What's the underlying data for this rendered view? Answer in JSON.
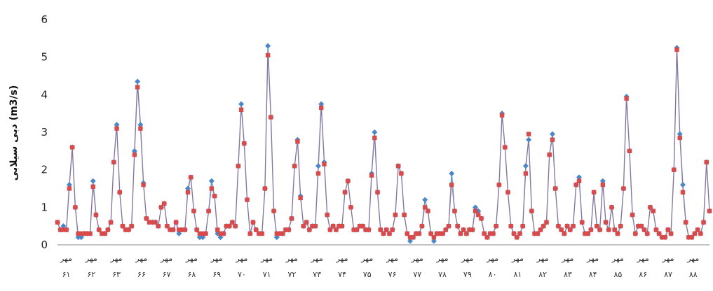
{
  "chart_data": {
    "type": "line",
    "ylabel": "دبی سیلابی (m3/s)",
    "ylim": [
      0,
      6
    ],
    "yticks": [
      0,
      1,
      2,
      3,
      4,
      5,
      6
    ],
    "grid": false,
    "xtick_labels": [
      {
        "top": "مهر",
        "bottom": "۶۱"
      },
      {
        "top": "مهر",
        "bottom": "۶۲"
      },
      {
        "top": "مهر",
        "bottom": "۶۳"
      },
      {
        "top": "مهر",
        "bottom": "۶۶"
      },
      {
        "top": "مهر",
        "bottom": "۶۷"
      },
      {
        "top": "مهر",
        "bottom": "۶۸"
      },
      {
        "top": "مهر",
        "bottom": "۶۹"
      },
      {
        "top": "مهر",
        "bottom": "۷۰"
      },
      {
        "top": "مهر",
        "bottom": "۷۱"
      },
      {
        "top": "مهر",
        "bottom": "۷۲"
      },
      {
        "top": "مهر",
        "bottom": "۷۳"
      },
      {
        "top": "مهر",
        "bottom": "۷۴"
      },
      {
        "top": "مهر",
        "bottom": "۷۵"
      },
      {
        "top": "مهر",
        "bottom": "۷۶"
      },
      {
        "top": "مهر",
        "bottom": "۷۷"
      },
      {
        "top": "مهر",
        "bottom": "۷۸"
      },
      {
        "top": "مهر",
        "bottom": "۷۹"
      },
      {
        "top": "مهر",
        "bottom": "۸۰"
      },
      {
        "top": "مهر",
        "bottom": "۸۱"
      },
      {
        "top": "مهر",
        "bottom": "۸۲"
      },
      {
        "top": "مهر",
        "bottom": "۸۳"
      },
      {
        "top": "مهر",
        "bottom": "۸۴"
      },
      {
        "top": "مهر",
        "bottom": "۸۵"
      },
      {
        "top": "مهر",
        "bottom": "۸۶"
      },
      {
        "top": "مهر",
        "bottom": "۸۷"
      },
      {
        "top": "مهر",
        "bottom": "۸۸"
      }
    ],
    "series": [
      {
        "marker": "diamond",
        "color": "#4a86c8",
        "values": [
          0.6,
          0.4,
          0.5,
          0.4,
          1.6,
          2.6,
          1.0,
          0.2,
          0.2,
          0.3,
          0.3,
          0.3,
          1.7,
          0.8,
          0.4,
          0.3,
          0.3,
          0.4,
          0.6,
          2.2,
          3.2,
          1.4,
          0.5,
          0.4,
          0.4,
          0.5,
          2.5,
          4.35,
          3.2,
          1.65,
          0.7,
          0.6,
          0.6,
          0.6,
          0.5,
          1.0,
          1.1,
          0.5,
          0.4,
          0.4,
          0.6,
          0.3,
          0.4,
          0.4,
          1.5,
          1.8,
          0.9,
          0.4,
          0.2,
          0.2,
          0.3,
          0.9,
          1.7,
          1.3,
          0.3,
          0.2,
          0.3,
          0.5,
          0.5,
          0.6,
          0.5,
          2.1,
          3.75,
          2.7,
          1.2,
          0.3,
          0.6,
          0.4,
          0.3,
          0.3,
          1.5,
          5.3,
          3.4,
          0.9,
          0.2,
          0.3,
          0.3,
          0.4,
          0.4,
          0.7,
          2.1,
          2.8,
          1.3,
          0.5,
          0.6,
          0.4,
          0.5,
          0.5,
          2.1,
          3.75,
          2.2,
          0.8,
          0.4,
          0.5,
          0.4,
          0.5,
          0.5,
          1.4,
          1.7,
          1.0,
          0.4,
          0.4,
          0.5,
          0.5,
          0.4,
          0.4,
          1.9,
          3.0,
          1.4,
          0.4,
          0.3,
          0.4,
          0.3,
          0.4,
          0.8,
          2.1,
          1.9,
          0.8,
          0.3,
          0.1,
          0.2,
          0.3,
          0.3,
          0.5,
          1.2,
          0.9,
          0.3,
          0.1,
          0.3,
          0.3,
          0.3,
          0.4,
          0.5,
          1.9,
          0.9,
          0.5,
          0.3,
          0.4,
          0.3,
          0.4,
          0.4,
          1.0,
          0.9,
          0.7,
          0.3,
          0.2,
          0.3,
          0.3,
          0.5,
          1.6,
          3.5,
          2.6,
          1.4,
          0.5,
          0.3,
          0.2,
          0.3,
          0.5,
          2.1,
          2.8,
          0.9,
          0.3,
          0.3,
          0.4,
          0.5,
          0.6,
          2.4,
          2.95,
          1.5,
          0.5,
          0.4,
          0.3,
          0.5,
          0.4,
          0.5,
          1.6,
          1.8,
          0.6,
          0.3,
          0.3,
          0.4,
          1.4,
          0.5,
          0.4,
          1.7,
          0.6,
          0.4,
          1.0,
          0.4,
          0.3,
          0.5,
          1.5,
          3.95,
          2.5,
          0.8,
          0.3,
          0.5,
          0.5,
          0.4,
          0.3,
          1.0,
          0.9,
          0.4,
          0.3,
          0.2,
          0.2,
          0.4,
          0.3,
          2.0,
          5.25,
          2.95,
          1.6,
          0.6,
          0.2,
          0.2,
          0.3,
          0.4,
          0.3,
          0.6,
          2.2,
          0.9
        ]
      },
      {
        "marker": "square",
        "color": "#d94b4b",
        "values": [
          0.6,
          0.4,
          0.4,
          0.4,
          1.5,
          2.6,
          1.0,
          0.3,
          0.3,
          0.3,
          0.3,
          0.3,
          1.55,
          0.8,
          0.4,
          0.3,
          0.3,
          0.4,
          0.6,
          2.2,
          3.1,
          1.4,
          0.5,
          0.4,
          0.4,
          0.5,
          2.4,
          4.2,
          3.1,
          1.6,
          0.7,
          0.6,
          0.6,
          0.6,
          0.5,
          1.0,
          1.1,
          0.5,
          0.4,
          0.4,
          0.6,
          0.4,
          0.4,
          0.4,
          1.4,
          1.8,
          0.9,
          0.4,
          0.3,
          0.3,
          0.3,
          0.9,
          1.5,
          1.3,
          0.4,
          0.3,
          0.3,
          0.5,
          0.5,
          0.6,
          0.5,
          2.1,
          3.6,
          2.7,
          1.2,
          0.3,
          0.6,
          0.4,
          0.3,
          0.3,
          1.5,
          5.05,
          3.4,
          0.9,
          0.3,
          0.3,
          0.3,
          0.4,
          0.4,
          0.7,
          2.1,
          2.75,
          1.25,
          0.5,
          0.6,
          0.4,
          0.5,
          0.5,
          1.9,
          3.65,
          2.15,
          0.8,
          0.4,
          0.5,
          0.4,
          0.5,
          0.5,
          1.4,
          1.7,
          1.0,
          0.4,
          0.4,
          0.5,
          0.5,
          0.4,
          0.4,
          1.85,
          2.85,
          1.4,
          0.4,
          0.3,
          0.4,
          0.3,
          0.4,
          0.8,
          2.1,
          1.9,
          0.8,
          0.3,
          0.2,
          0.2,
          0.3,
          0.3,
          0.5,
          1.0,
          0.9,
          0.3,
          0.2,
          0.3,
          0.3,
          0.3,
          0.4,
          0.5,
          1.6,
          0.9,
          0.5,
          0.3,
          0.4,
          0.3,
          0.4,
          0.4,
          0.9,
          0.8,
          0.7,
          0.3,
          0.2,
          0.3,
          0.3,
          0.5,
          1.6,
          3.45,
          2.6,
          1.4,
          0.5,
          0.3,
          0.2,
          0.3,
          0.5,
          1.9,
          2.95,
          0.9,
          0.3,
          0.3,
          0.4,
          0.5,
          0.6,
          2.4,
          2.8,
          1.5,
          0.5,
          0.4,
          0.3,
          0.5,
          0.4,
          0.5,
          1.6,
          1.7,
          0.6,
          0.3,
          0.3,
          0.4,
          1.4,
          0.5,
          0.4,
          1.6,
          0.6,
          0.4,
          1.0,
          0.4,
          0.3,
          0.5,
          1.5,
          3.9,
          2.5,
          0.8,
          0.3,
          0.5,
          0.5,
          0.4,
          0.3,
          1.0,
          0.9,
          0.4,
          0.3,
          0.2,
          0.2,
          0.4,
          0.3,
          2.0,
          5.2,
          2.85,
          1.4,
          0.6,
          0.2,
          0.2,
          0.3,
          0.4,
          0.3,
          0.6,
          2.2,
          0.9
        ]
      }
    ]
  },
  "colors": {
    "series1": "#4a86c8",
    "series2": "#d94b4b",
    "axis": "#888888"
  }
}
